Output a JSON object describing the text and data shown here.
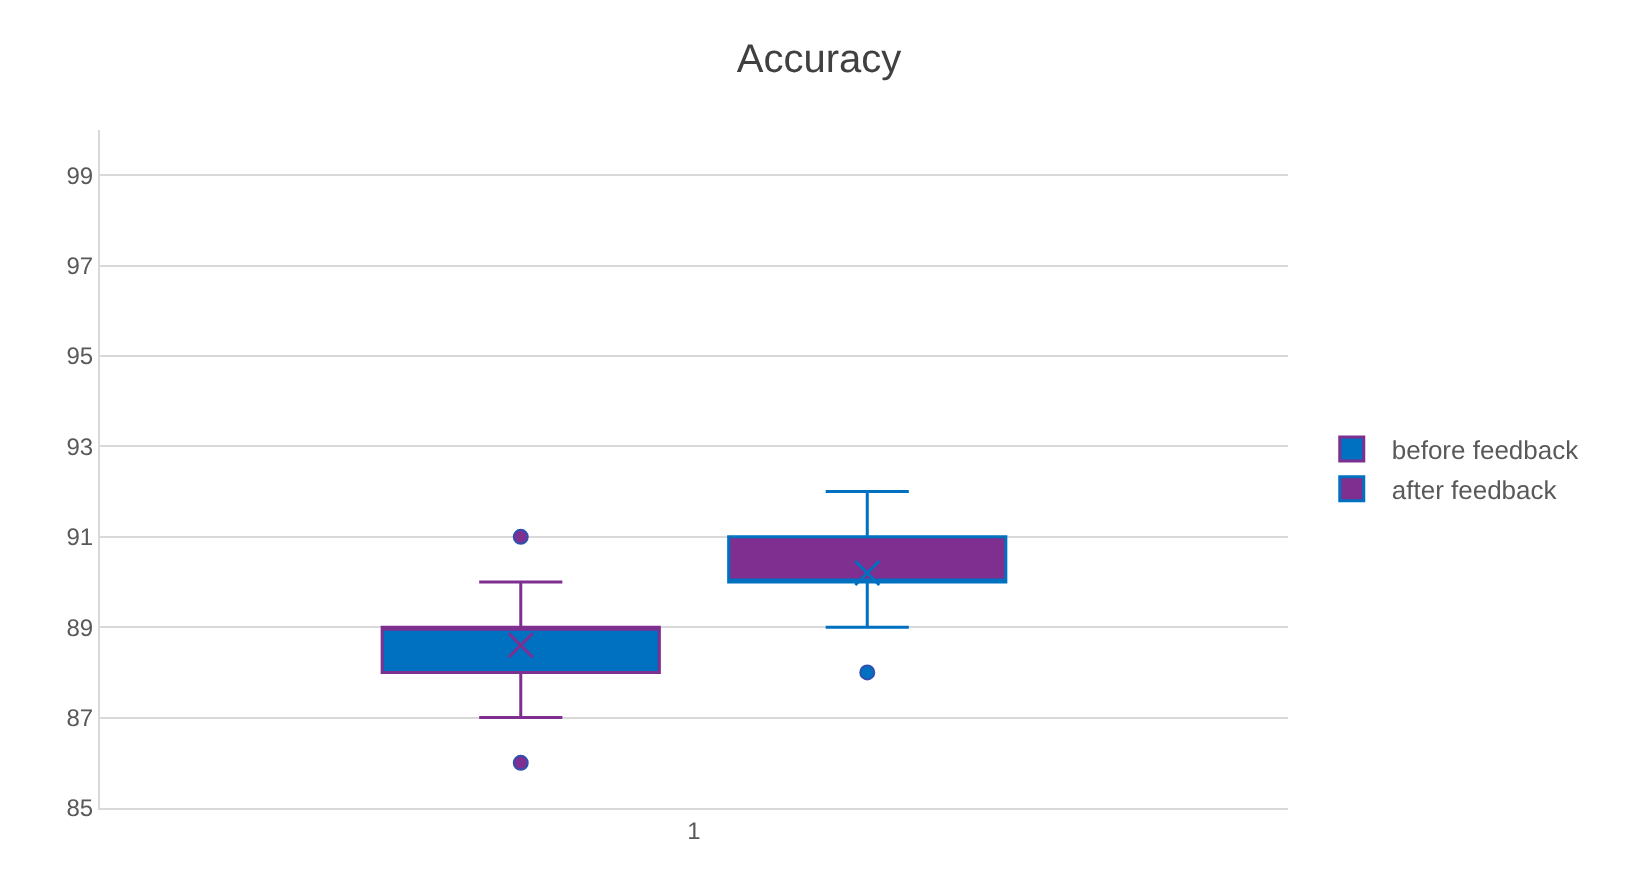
{
  "chart_data": {
    "type": "box",
    "title": "Accuracy",
    "categories": [
      "1"
    ],
    "series": [
      {
        "name": "before feedback",
        "color": "#0070c0",
        "boxes": [
          {
            "low": 87,
            "q1": 88,
            "median": 89,
            "q3": 89,
            "high": 90,
            "mean": 88.6,
            "outliers": [
              86,
              91
            ]
          }
        ]
      },
      {
        "name": "after feedback",
        "color": "#7f2f8f",
        "boxes": [
          {
            "low": 89,
            "q1": 90,
            "median": 90,
            "q3": 91,
            "high": 92,
            "mean": 90.2,
            "outliers": [
              88
            ]
          }
        ]
      }
    ],
    "ylim": [
      85,
      100
    ],
    "yticks": [
      85,
      87,
      89,
      91,
      93,
      95,
      97,
      99
    ],
    "grid": "y",
    "legend": "right"
  }
}
